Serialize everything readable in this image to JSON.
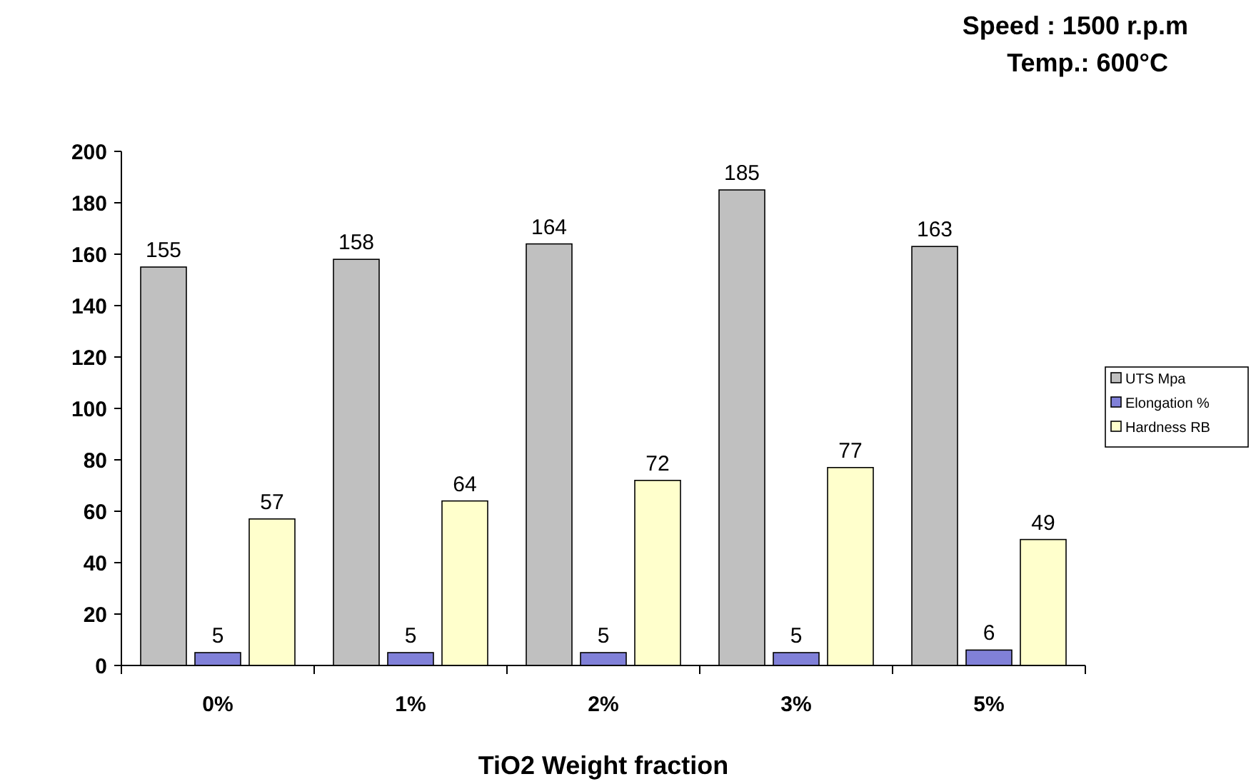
{
  "chart_data": {
    "type": "bar",
    "xlabel": "TiO2 Weight fraction",
    "categories": [
      "0%",
      "1%",
      "2%",
      "3%",
      "5%"
    ],
    "series": [
      {
        "name": "UTS Mpa",
        "color": "#c0c0c0",
        "values": [
          155,
          158,
          164,
          185,
          163
        ]
      },
      {
        "name": "Elongation  %",
        "color": "#8080d8",
        "values": [
          5,
          5,
          5,
          5,
          6
        ]
      },
      {
        "name": "Hardness RB",
        "color": "#ffffcc",
        "values": [
          57,
          64,
          72,
          77,
          49
        ]
      }
    ],
    "ylim": [
      0,
      200
    ],
    "yticks": [
      0,
      20,
      40,
      60,
      80,
      100,
      120,
      140,
      160,
      180,
      200
    ],
    "grid": false,
    "legend": "right",
    "data_labels": true,
    "annotations": [
      "Speed : 1500 r.p.m",
      "Temp.:  600°C"
    ]
  }
}
